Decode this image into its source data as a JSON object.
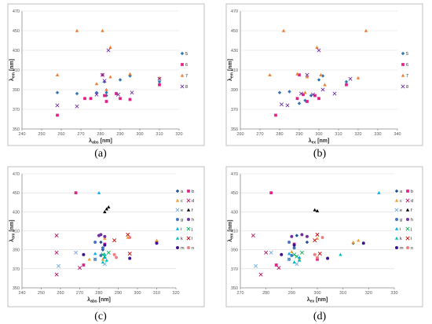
{
  "figure": {
    "captions": [
      "(a)",
      "(b)",
      "(c)",
      "(d)"
    ]
  },
  "colors": {
    "5": "#2e75b6",
    "6": "#e0218a",
    "7": "#ed7d31",
    "8": "#7030a0",
    "a": "#1f4e9c",
    "b": "#e0218a",
    "c": "#f0a030",
    "d": "#b01060",
    "e": "#6fa8dc",
    "f": "#000000",
    "g": "#4472c4",
    "h": "#7030a0",
    "i": "#00b0f0",
    "j": "#00b050",
    "k": "#00c0c0",
    "l": "#c00000",
    "m": "#3c1090",
    "n": "#f08080"
  },
  "chart_data": [
    {
      "type": "scatter",
      "panel": "(a)",
      "xlabel": "λabs [nm]",
      "xlabel_main": "λ",
      "xlabel_sub": "abs",
      "xlabel_unit": " [nm]",
      "ylabel_main": "λ",
      "ylabel_sub": "em",
      "ylabel_unit": " [nm]",
      "xlim": [
        240,
        320
      ],
      "ylim": [
        350,
        470
      ],
      "xticks": [
        240,
        250,
        260,
        270,
        280,
        290,
        300,
        310,
        320
      ],
      "yticks": [
        350,
        370,
        390,
        410,
        430,
        450,
        470
      ],
      "legend": [
        "5",
        "6",
        "7",
        "8"
      ],
      "series": [
        {
          "name": "5",
          "marker": "diamond",
          "points": [
            [
              258,
              387
            ],
            [
              268,
              386
            ],
            [
              278,
              387
            ],
            [
              282,
              398
            ],
            [
              283,
              387
            ],
            [
              283,
              384
            ],
            [
              290,
              400
            ],
            [
              295,
              404
            ],
            [
              310,
              398
            ]
          ]
        },
        {
          "name": "6",
          "marker": "square",
          "points": [
            [
              258,
              364
            ],
            [
              272,
              381
            ],
            [
              275,
              381
            ],
            [
              281,
              405
            ],
            [
              282,
              384
            ],
            [
              283,
              378
            ],
            [
              288,
              386
            ],
            [
              290,
              381
            ],
            [
              295,
              380
            ],
            [
              310,
              395
            ]
          ]
        },
        {
          "name": "7",
          "marker": "triangle",
          "points": [
            [
              258,
              405
            ],
            [
              268,
              450
            ],
            [
              278,
              396
            ],
            [
              281,
              450
            ],
            [
              283,
              390
            ],
            [
              285,
              433
            ],
            [
              285,
              403
            ],
            [
              295,
              406
            ],
            [
              310,
              402
            ]
          ]
        },
        {
          "name": "8",
          "marker": "x",
          "points": [
            [
              258,
              374
            ],
            [
              268,
              373
            ],
            [
              278,
              385
            ],
            [
              281,
              405
            ],
            [
              282,
              399
            ],
            [
              284,
              430
            ],
            [
              289,
              385
            ],
            [
              296,
              387
            ],
            [
              310,
              401
            ]
          ]
        }
      ]
    },
    {
      "type": "scatter",
      "panel": "(b)",
      "xlabel": "λex [nm]",
      "xlabel_main": "λ",
      "xlabel_sub": "ex",
      "xlabel_unit": " [nm]",
      "ylabel_main": "λ",
      "ylabel_sub": "em",
      "ylabel_unit": " [nm]",
      "xlim": [
        260,
        340
      ],
      "ylim": [
        350,
        470
      ],
      "xticks": [
        260,
        270,
        280,
        290,
        300,
        310,
        320,
        330,
        340
      ],
      "yticks": [
        350,
        370,
        390,
        410,
        430,
        450,
        470
      ],
      "legend": [
        "5",
        "6",
        "7",
        "8"
      ],
      "series": [
        {
          "name": "5",
          "marker": "diamond",
          "points": [
            [
              280,
              387
            ],
            [
              285,
              388
            ],
            [
              290,
              376
            ],
            [
              293,
              379
            ],
            [
              296,
              384
            ],
            [
              300,
              400
            ],
            [
              302,
              404
            ],
            [
              314,
              398
            ]
          ]
        },
        {
          "name": "6",
          "marker": "square",
          "points": [
            [
              278,
              364
            ],
            [
              289,
              381
            ],
            [
              290,
              405
            ],
            [
              292,
              385
            ],
            [
              294,
              378
            ],
            [
              298,
              384
            ],
            [
              300,
              381
            ],
            [
              314,
              395
            ]
          ]
        },
        {
          "name": "7",
          "marker": "triangle",
          "points": [
            [
              275,
              405
            ],
            [
              282,
              450
            ],
            [
              289,
              406
            ],
            [
              293,
              387
            ],
            [
              294,
              403
            ],
            [
              299,
              433
            ],
            [
              301,
              405
            ],
            [
              303,
              395
            ],
            [
              320,
              402
            ],
            [
              324,
              450
            ]
          ]
        },
        {
          "name": "8",
          "marker": "x",
          "points": [
            [
              281,
              375
            ],
            [
              284,
              374
            ],
            [
              291,
              386
            ],
            [
              294,
              405
            ],
            [
              297,
              385
            ],
            [
              300,
              430
            ],
            [
              302,
              390
            ],
            [
              308,
              386
            ],
            [
              316,
              401
            ]
          ]
        }
      ]
    },
    {
      "type": "scatter",
      "panel": "(c)",
      "xlabel": "λabs [nm]",
      "xlabel_main": "λ",
      "xlabel_sub": "abs",
      "xlabel_unit": " [nm]",
      "ylabel_main": "λ",
      "ylabel_sub": "em",
      "ylabel_unit": " [nm]",
      "xlim": [
        240,
        320
      ],
      "ylim": [
        350,
        470
      ],
      "xticks": [
        240,
        250,
        260,
        270,
        280,
        290,
        300,
        310,
        320
      ],
      "yticks": [
        350,
        370,
        390,
        410,
        430,
        450,
        470
      ],
      "legend": [
        "a",
        "b",
        "c",
        "d",
        "e",
        "f",
        "g",
        "h",
        "i",
        "j",
        "k",
        "l",
        "m",
        "n"
      ],
      "series": [
        {
          "name": "a",
          "marker": "diamond",
          "points": [
            [
              278,
              380
            ],
            [
              280,
              405
            ],
            [
              281,
              398
            ],
            [
              282,
              390
            ]
          ]
        },
        {
          "name": "b",
          "marker": "square",
          "points": [
            [
              268,
              450
            ],
            [
              272,
              374
            ],
            [
              283,
              396
            ],
            [
              310,
              398
            ]
          ]
        },
        {
          "name": "c",
          "marker": "triangle",
          "points": [
            [
              275,
              380
            ],
            [
              282,
              380
            ],
            [
              283,
              402
            ],
            [
              295,
              403
            ],
            [
              310,
              400
            ]
          ]
        },
        {
          "name": "d",
          "marker": "x",
          "points": [
            [
              258,
              405
            ],
            [
              258,
              387
            ],
            [
              258,
              364
            ],
            [
              270,
              371
            ]
          ]
        },
        {
          "name": "e",
          "marker": "x",
          "points": [
            [
              259,
              373
            ],
            [
              268,
              387
            ],
            [
              278,
              380
            ],
            [
              283,
              375
            ]
          ]
        },
        {
          "name": "f",
          "marker": "triangle",
          "points": [
            [
              283,
              430
            ],
            [
              284,
              433
            ],
            [
              285,
              435
            ]
          ]
        },
        {
          "name": "g",
          "marker": "circle",
          "points": [
            [
              278,
              398
            ],
            [
              281,
              384
            ],
            [
              282,
              392
            ]
          ]
        },
        {
          "name": "h",
          "marker": "circle",
          "points": [
            [
              280,
              405
            ],
            [
              281,
              406
            ],
            [
              283,
              404
            ]
          ]
        },
        {
          "name": "i",
          "marker": "triangle",
          "points": [
            [
              280,
              450
            ],
            [
              278,
              386
            ],
            [
              283,
              382
            ]
          ]
        },
        {
          "name": "j",
          "marker": "x",
          "points": [
            [
              282,
              385
            ],
            [
              283,
              383
            ],
            [
              285,
              387
            ]
          ]
        },
        {
          "name": "k",
          "marker": "triangle",
          "points": [
            [
              282,
              377
            ],
            [
              284,
              379
            ],
            [
              283,
              385
            ]
          ]
        },
        {
          "name": "l",
          "marker": "x",
          "points": [
            [
              288,
              400
            ],
            [
              295,
              406
            ],
            [
              296,
              386
            ]
          ]
        },
        {
          "name": "m",
          "marker": "circle",
          "points": [
            [
              272,
              385
            ],
            [
              283,
              395
            ],
            [
              296,
              381
            ],
            [
              310,
              397
            ]
          ]
        },
        {
          "name": "n",
          "marker": "circle",
          "points": [
            [
              288,
              385
            ],
            [
              289,
              382
            ],
            [
              296,
              403
            ]
          ]
        }
      ]
    },
    {
      "type": "scatter",
      "panel": "(d)",
      "xlabel": "λex [nm]",
      "xlabel_main": "λ",
      "xlabel_sub": "ex",
      "xlabel_unit": " [nm]",
      "ylabel_main": "λ",
      "ylabel_sub": "em",
      "ylabel_unit": " [nm]",
      "xlim": [
        270,
        330
      ],
      "ylim": [
        350,
        470
      ],
      "xticks": [
        270,
        280,
        290,
        300,
        310,
        320,
        330
      ],
      "yticks": [
        350,
        370,
        390,
        410,
        430,
        450,
        470
      ],
      "legend": [
        "a",
        "b",
        "c",
        "d",
        "e",
        "f",
        "g",
        "h",
        "i",
        "j",
        "k",
        "l",
        "m",
        "n"
      ],
      "series": [
        {
          "name": "a",
          "marker": "diamond",
          "points": [
            [
              289,
              380
            ],
            [
              292,
              405
            ],
            [
              296,
              398
            ],
            [
              314,
              397
            ]
          ]
        },
        {
          "name": "b",
          "marker": "square",
          "points": [
            [
              282,
              450
            ],
            [
              284,
              374
            ],
            [
              291,
              396
            ],
            [
              300,
              380
            ]
          ]
        },
        {
          "name": "c",
          "marker": "triangle",
          "points": [
            [
              290,
              388
            ],
            [
              293,
              380
            ],
            [
              300,
              402
            ],
            [
              314,
              398
            ],
            [
              316,
              400
            ]
          ]
        },
        {
          "name": "d",
          "marker": "x",
          "points": [
            [
              275,
              405
            ],
            [
              280,
              387
            ],
            [
              278,
              364
            ],
            [
              285,
              371
            ]
          ]
        },
        {
          "name": "e",
          "marker": "x",
          "points": [
            [
              276,
              373
            ],
            [
              282,
              387
            ],
            [
              289,
              380
            ],
            [
              292,
              375
            ]
          ]
        },
        {
          "name": "f",
          "marker": "triangle",
          "points": [
            [
              299,
              432
            ],
            [
              300,
              431
            ]
          ]
        },
        {
          "name": "g",
          "marker": "circle",
          "points": [
            [
              289,
              398
            ],
            [
              290,
              384
            ],
            [
              291,
              392
            ]
          ]
        },
        {
          "name": "h",
          "marker": "circle",
          "points": [
            [
              290,
              404
            ],
            [
              294,
              406
            ],
            [
              296,
              404
            ]
          ]
        },
        {
          "name": "i",
          "marker": "triangle",
          "points": [
            [
              324,
              450
            ],
            [
              289,
              386
            ],
            [
              293,
              382
            ]
          ]
        },
        {
          "name": "j",
          "marker": "x",
          "points": [
            [
              291,
              385
            ],
            [
              292,
              383
            ],
            [
              294,
              387
            ]
          ]
        },
        {
          "name": "k",
          "marker": "triangle",
          "points": [
            [
              291,
              377
            ],
            [
              293,
              379
            ],
            [
              309,
              385
            ]
          ]
        },
        {
          "name": "l",
          "marker": "x",
          "points": [
            [
              299,
              400
            ],
            [
              300,
              406
            ],
            [
              301,
              386
            ]
          ]
        },
        {
          "name": "m",
          "marker": "circle",
          "points": [
            [
              286,
              385
            ],
            [
              291,
              395
            ],
            [
              304,
              381
            ],
            [
              318,
              397
            ]
          ]
        },
        {
          "name": "n",
          "marker": "circle",
          "points": [
            [
              299,
              385
            ],
            [
              300,
              382
            ],
            [
              302,
              403
            ]
          ]
        }
      ]
    }
  ]
}
